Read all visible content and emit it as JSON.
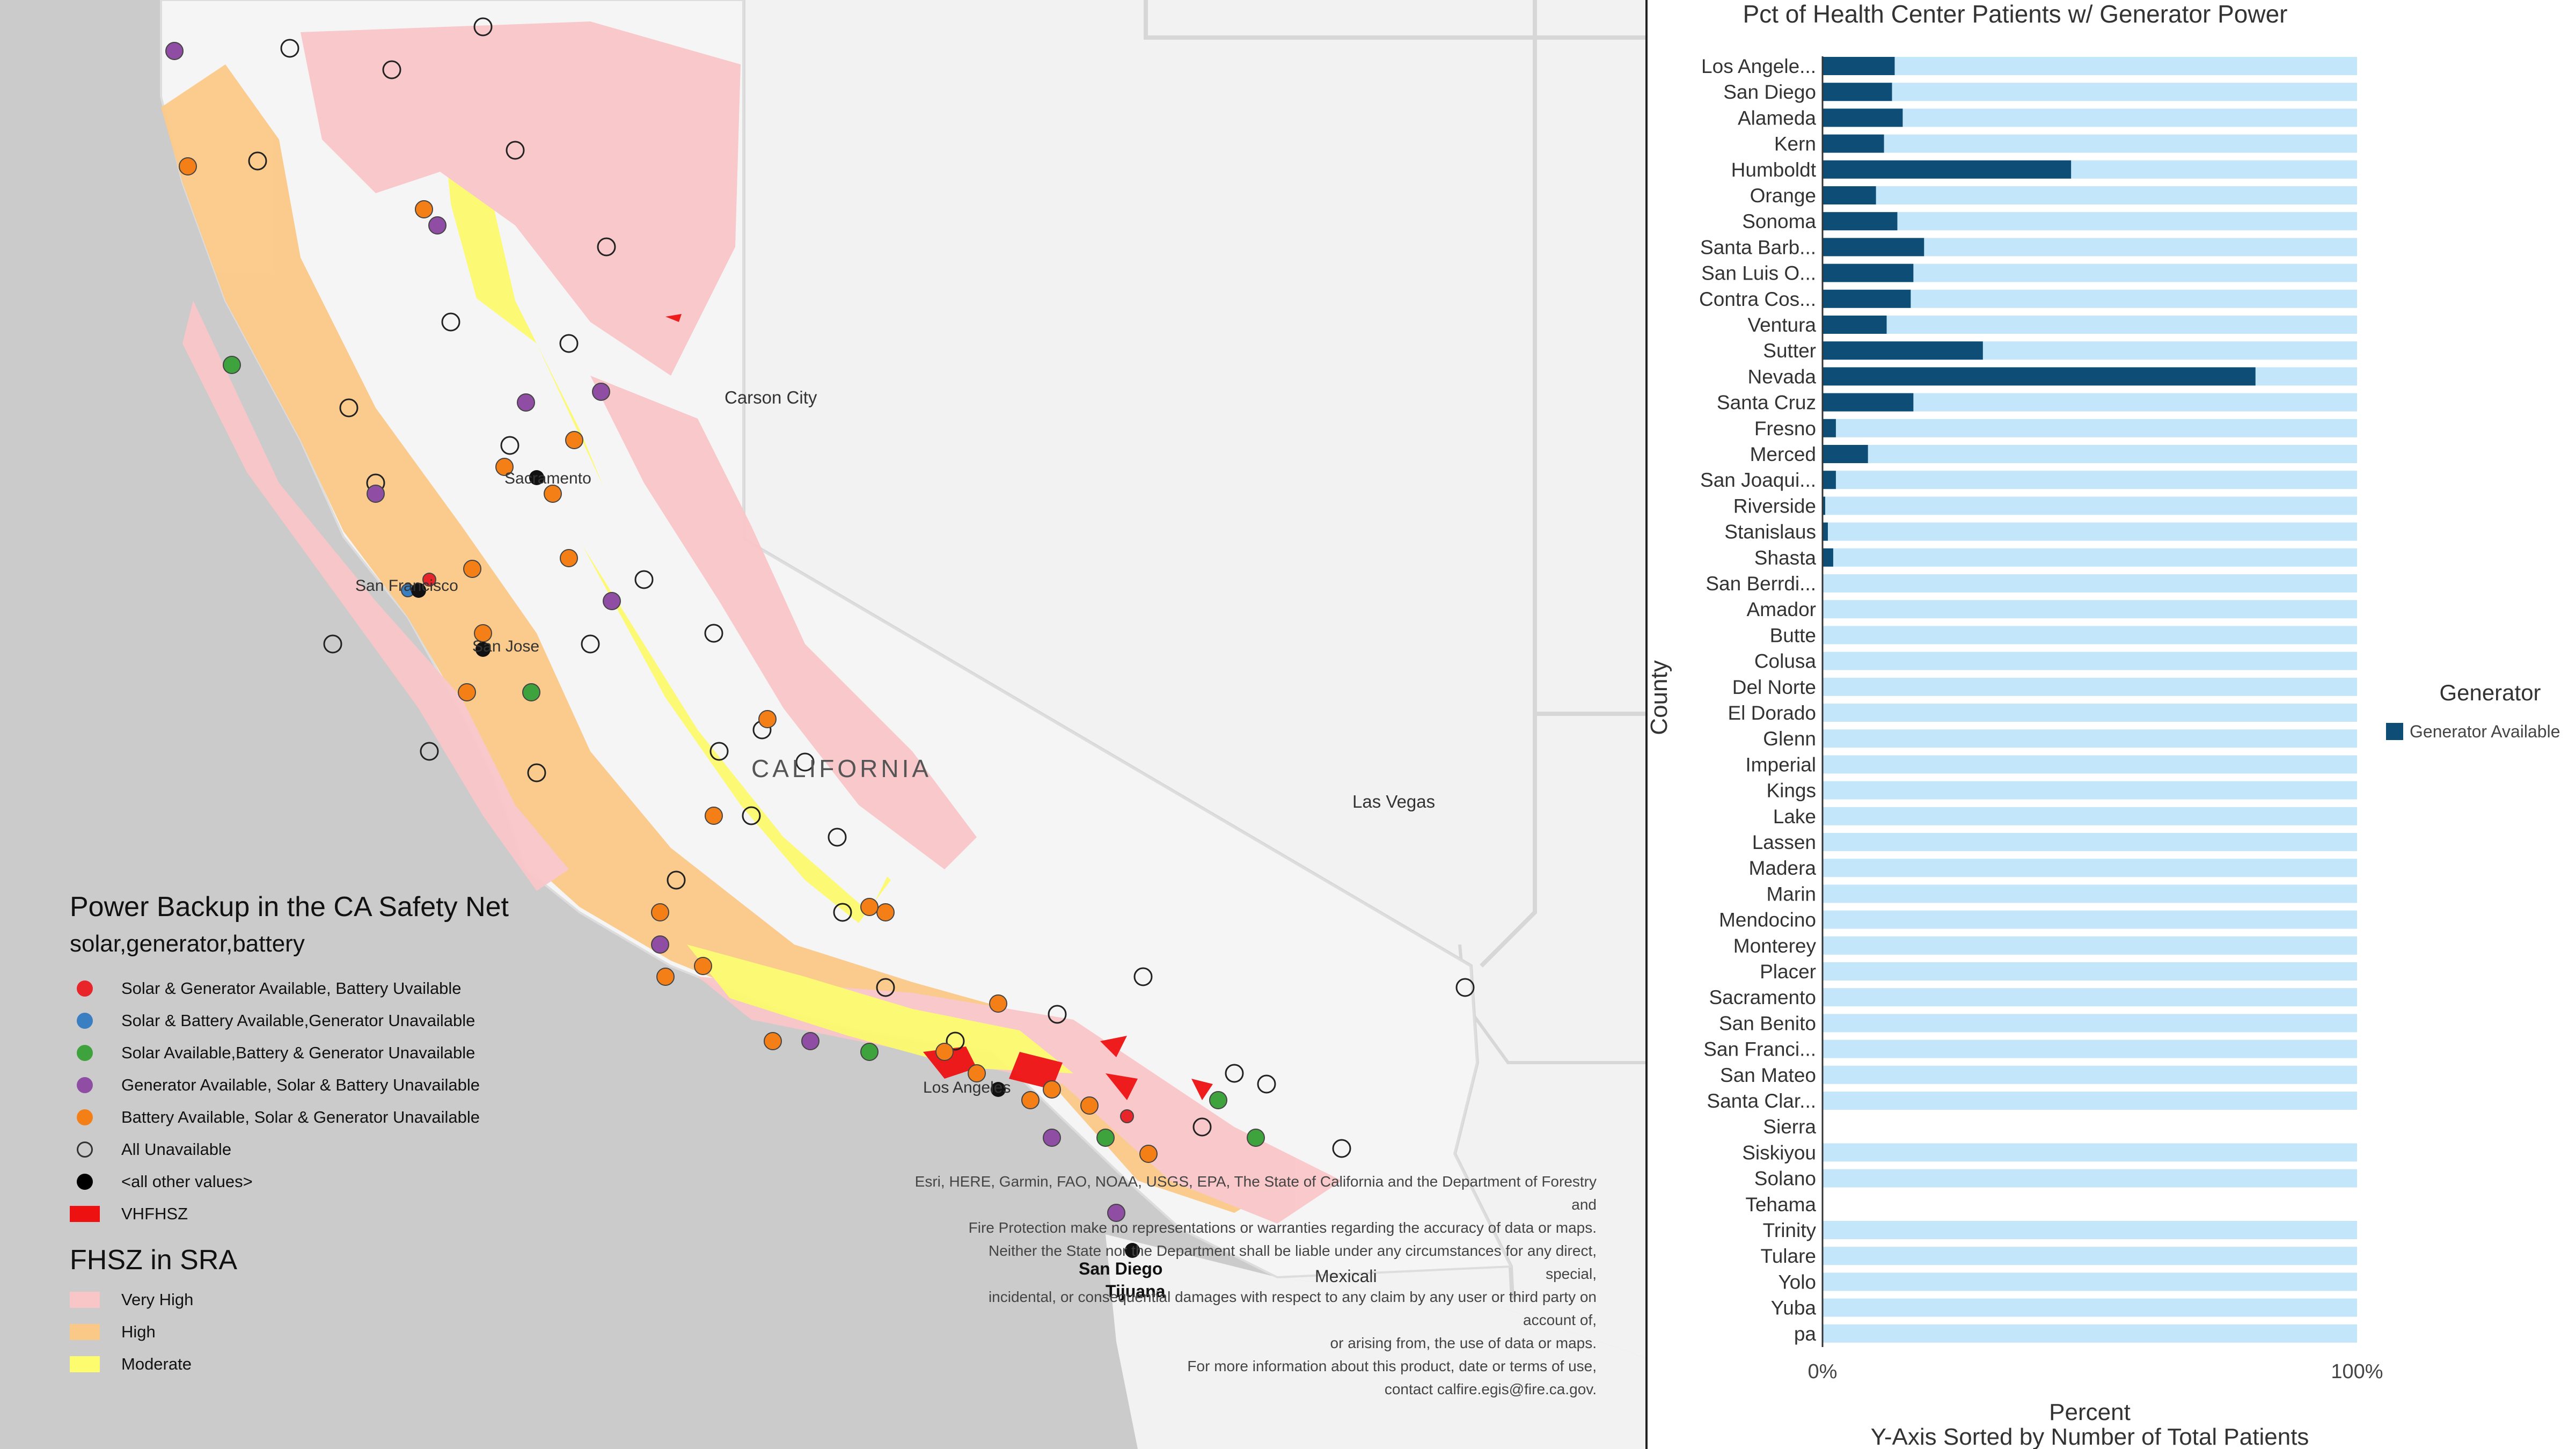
{
  "map": {
    "place_labels": [
      {
        "id": "carson-city",
        "text": "Carson City"
      },
      {
        "id": "las-vegas",
        "text": "Las Vegas"
      },
      {
        "id": "california",
        "text": "CALIFORNIA"
      },
      {
        "id": "sacramento",
        "text": "Sacramento"
      },
      {
        "id": "san-francisco",
        "text": "San Francisco"
      },
      {
        "id": "san-jose",
        "text": "San Jose"
      },
      {
        "id": "los-angeles",
        "text": "Los Angeles"
      },
      {
        "id": "san-diego",
        "text": "San Diego"
      },
      {
        "id": "mexicali",
        "text": "Mexicali"
      },
      {
        "id": "tijuana",
        "text": "Tijuana"
      }
    ],
    "legend": {
      "title": "Power Backup in the CA Safety Net",
      "subtitle": "solar,generator,battery",
      "items": [
        {
          "label": "Solar & Generator Available, Battery Uvailable",
          "color": "#e8262a",
          "style": "filled"
        },
        {
          "label": "Solar & Battery Available,Generator Unavailable",
          "color": "#3a7fc2",
          "style": "filled"
        },
        {
          "label": "Solar Available,Battery & Generator Unavailable",
          "color": "#3ea33c",
          "style": "filled"
        },
        {
          "label": "Generator Available, Solar & Battery Unavailable",
          "color": "#8f4ea3",
          "style": "filled"
        },
        {
          "label": "Battery Available, Solar & Generator Unavailable",
          "color": "#f57f17",
          "style": "filled"
        },
        {
          "label": "All Unavailable",
          "color": "#333333",
          "style": "hollow"
        },
        {
          "label": "<all other values>",
          "color": "#000000",
          "style": "filled"
        },
        {
          "label": "VHFHSZ",
          "color": "#ee1111",
          "style": "swatch"
        }
      ],
      "zone_title": "FHSZ in SRA",
      "zone_items": [
        {
          "label": "Very High",
          "color": "#f9c6c8"
        },
        {
          "label": "High",
          "color": "#fbc987"
        },
        {
          "label": "Moderate",
          "color": "#fdfb6e"
        }
      ]
    },
    "attribution": [
      "Esri, HERE, Garmin, FAO, NOAA, USGS, EPA, The State of California and the Department of Forestry",
      "and",
      "Fire Protection make no representations or warranties regarding the accuracy of data or maps.",
      "Neither the State nor the Department shall be liable under any circumstances for any direct,",
      "special,",
      "incidental, or consequential damages with respect to any claim by any user or third party on",
      "account of,",
      "or arising from, the use of data or maps.",
      "For more information about this product, date or terms of use,",
      "contact calfire.egis@fire.ca.gov."
    ]
  },
  "chart_data": {
    "type": "bar",
    "orientation": "horizontal",
    "title": "Pct of Health Center Patients w/ Generator Power",
    "xlabel": "Percent",
    "xlabel_sub": "Y-Axis Sorted by Number of Total Patients",
    "ylabel": "County",
    "xlim": [
      0,
      100
    ],
    "x_ticks": [
      "0%",
      "100%"
    ],
    "legend_title": "Generator",
    "legend_position": "right",
    "categories": [
      "Los Angele...",
      "San Diego",
      "Alameda",
      "Kern",
      "Humboldt",
      "Orange",
      "Sonoma",
      "Santa Barb...",
      "San Luis O...",
      "Contra Cos...",
      "Ventura",
      "Sutter",
      "Nevada",
      "Santa Cruz",
      "Fresno",
      "Merced",
      "San Joaqui...",
      "Riverside",
      "Stanislaus",
      "Shasta",
      "San Berrdi...",
      "Amador",
      "Butte",
      "Colusa",
      "Del Norte",
      "El Dorado",
      "Glenn",
      "Imperial",
      "Kings",
      "Lake",
      "Lassen",
      "Madera",
      "Marin",
      "Mendocino",
      "Monterey",
      "Placer",
      "Sacramento",
      "San Benito",
      "San Franci...",
      "San Mateo",
      "Santa Clar...",
      "Sierra",
      "Siskiyou",
      "Solano",
      "Tehama",
      "Trinity",
      "Tulare",
      "Yolo",
      "Yuba",
      "pa"
    ],
    "series": [
      {
        "name": "Generator Available",
        "color": "#0e4d75",
        "values": [
          13.5,
          13,
          15,
          11.5,
          46.5,
          10,
          14,
          19,
          17,
          16.5,
          12,
          30,
          81,
          17,
          2.5,
          8.5,
          2.5,
          0.5,
          1,
          2,
          0,
          0,
          0,
          0,
          0,
          0,
          0,
          0,
          0,
          0,
          0,
          0,
          0,
          0,
          0,
          0,
          0,
          0,
          0,
          0,
          0,
          0,
          0,
          0,
          0,
          0,
          0,
          0,
          0,
          0
        ]
      },
      {
        "name": "",
        "color": "#c3e6fa",
        "values": [
          100,
          100,
          100,
          100,
          100,
          100,
          100,
          100,
          100,
          100,
          100,
          100,
          100,
          100,
          100,
          100,
          100,
          100,
          100,
          100,
          100,
          100,
          100,
          100,
          100,
          100,
          100,
          100,
          100,
          100,
          100,
          100,
          100,
          100,
          100,
          100,
          100,
          100,
          100,
          100,
          100,
          0,
          100,
          100,
          0,
          100,
          100,
          100,
          100,
          100
        ]
      }
    ]
  }
}
